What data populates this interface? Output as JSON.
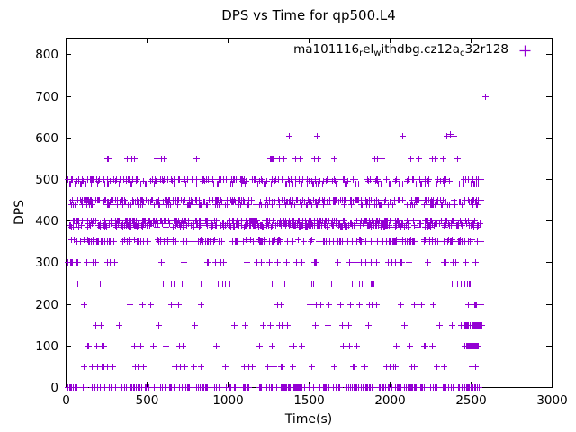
{
  "chart_data": {
    "type": "scatter",
    "title": "DPS vs Time for qp500.L4",
    "xlabel": "Time(s)",
    "ylabel": "DPS",
    "xlim": [
      0,
      3000
    ],
    "ylim": [
      0,
      840
    ],
    "xticks": [
      0,
      500,
      1000,
      1500,
      2000,
      2500,
      3000
    ],
    "yticks": [
      0,
      100,
      200,
      300,
      400,
      500,
      600,
      700,
      800
    ],
    "grid": false,
    "legend_position": "top-right-inside",
    "marker": "plus",
    "marker_color": "#9400d3",
    "legend": {
      "label_full": "ma101116_rel_withdbg.cz12a_c32r128",
      "label_segments": [
        {
          "text": "ma101116",
          "sub": false
        },
        {
          "text": "r",
          "sub": true
        },
        {
          "text": "el",
          "sub": false
        },
        {
          "text": "w",
          "sub": true
        },
        {
          "text": "ithdbg.cz12a",
          "sub": false
        },
        {
          "text": "c",
          "sub": true
        },
        {
          "text": "32r128",
          "sub": false
        }
      ]
    },
    "seed": 7,
    "bands": [
      {
        "y": 0,
        "x0": 5,
        "x1": 2565,
        "n": 250
      },
      {
        "y": 50,
        "x0": 15,
        "x1": 2560,
        "n": 46
      },
      {
        "y": 100,
        "x0": 60,
        "x1": 2400,
        "n": 26
      },
      {
        "y": 100,
        "x0": 2430,
        "x1": 2565,
        "n": 26
      },
      {
        "y": 150,
        "x0": 30,
        "x1": 2440,
        "n": 22
      },
      {
        "y": 150,
        "x0": 2460,
        "x1": 2575,
        "n": 28
      },
      {
        "y": 200,
        "x0": 20,
        "x1": 2500,
        "n": 26
      },
      {
        "y": 200,
        "x0": 2520,
        "x1": 2565,
        "n": 6
      },
      {
        "y": 250,
        "x0": 60,
        "x1": 2450,
        "n": 26
      },
      {
        "y": 250,
        "x0": 2410,
        "x1": 2500,
        "n": 6
      },
      {
        "y": 300,
        "x0": 8,
        "x1": 150,
        "n": 10
      },
      {
        "y": 300,
        "x0": 150,
        "x1": 2560,
        "n": 48
      },
      {
        "y": 350,
        "x0": 5,
        "x1": 2565,
        "n": 150
      },
      {
        "y": 355,
        "x0": 20,
        "x1": 2550,
        "n": 40
      },
      {
        "y": 385,
        "x0": 30,
        "x1": 2550,
        "n": 60
      },
      {
        "y": 390,
        "x0": 15,
        "x1": 2560,
        "n": 140
      },
      {
        "y": 395,
        "x0": 15,
        "x1": 2560,
        "n": 130
      },
      {
        "y": 400,
        "x0": 8,
        "x1": 2565,
        "n": 190
      },
      {
        "y": 440,
        "x0": 30,
        "x1": 2555,
        "n": 110
      },
      {
        "y": 445,
        "x0": 25,
        "x1": 2560,
        "n": 130
      },
      {
        "y": 450,
        "x0": 20,
        "x1": 2565,
        "n": 160
      },
      {
        "y": 490,
        "x0": 10,
        "x1": 2560,
        "n": 85
      },
      {
        "y": 495,
        "x0": 40,
        "x1": 2550,
        "n": 55
      },
      {
        "y": 500,
        "x0": 5,
        "x1": 2565,
        "n": 120
      },
      {
        "y": 550,
        "x0": 85,
        "x1": 2450,
        "n": 33
      }
    ],
    "points": [
      [
        1375,
        605
      ],
      [
        1552,
        605
      ],
      [
        2080,
        605
      ],
      [
        2348,
        605
      ],
      [
        2372,
        608
      ],
      [
        2392,
        605
      ],
      [
        2590,
        700
      ]
    ]
  }
}
